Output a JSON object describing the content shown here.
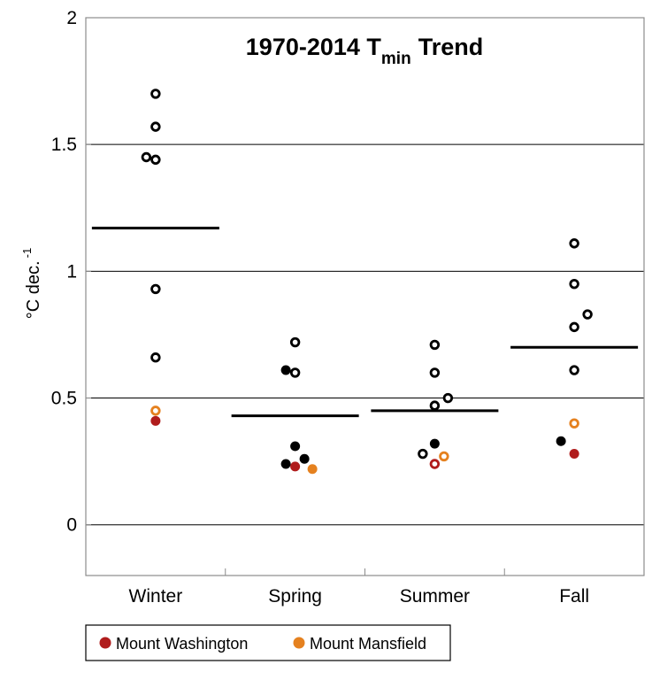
{
  "chart_data": {
    "type": "scatter",
    "title": "1970-2014 T",
    "title_subscript": "min",
    "title_suffix": "Trend",
    "ylabel": "°C dec.",
    "ylabel_superscript": "-1",
    "ylim": [
      -0.2,
      2.0
    ],
    "yticks": [
      0,
      0.5,
      1,
      1.5,
      2
    ],
    "ytick_labels": [
      "0",
      "0.5",
      "1",
      "1.5",
      "2"
    ],
    "grid": true,
    "categories": [
      "Winter",
      "Spring",
      "Summer",
      "Fall"
    ],
    "means": [
      1.17,
      0.43,
      0.45,
      0.7
    ],
    "colors": {
      "station": "#000000",
      "washington": "#b01c1c",
      "mansfield": "#e5811f"
    },
    "points": [
      {
        "category": 0,
        "offset": -0.35,
        "value": 1.45,
        "series": "station",
        "filled": false
      },
      {
        "category": 0,
        "offset": 0,
        "value": 1.7,
        "series": "station",
        "filled": false
      },
      {
        "category": 0,
        "offset": 0,
        "value": 1.57,
        "series": "station",
        "filled": false
      },
      {
        "category": 0,
        "offset": 0,
        "value": 1.44,
        "series": "station",
        "filled": false
      },
      {
        "category": 0,
        "offset": 0,
        "value": 0.93,
        "series": "station",
        "filled": false
      },
      {
        "category": 0,
        "offset": 0,
        "value": 0.66,
        "series": "station",
        "filled": false
      },
      {
        "category": 0,
        "offset": 0,
        "value": 0.45,
        "series": "Mount Mansfield",
        "filled": false
      },
      {
        "category": 0,
        "offset": 0,
        "value": 0.41,
        "series": "Mount Washington",
        "filled": true
      },
      {
        "category": 1,
        "offset": 0,
        "value": 0.72,
        "series": "station",
        "filled": false
      },
      {
        "category": 1,
        "offset": -0.35,
        "value": 0.61,
        "series": "station",
        "filled": true
      },
      {
        "category": 1,
        "offset": 0,
        "value": 0.6,
        "series": "station",
        "filled": false
      },
      {
        "category": 1,
        "offset": 0,
        "value": 0.31,
        "series": "station",
        "filled": true
      },
      {
        "category": 1,
        "offset": 0.35,
        "value": 0.26,
        "series": "station",
        "filled": true
      },
      {
        "category": 1,
        "offset": -0.35,
        "value": 0.24,
        "series": "station",
        "filled": true
      },
      {
        "category": 1,
        "offset": 0,
        "value": 0.23,
        "series": "Mount Washington",
        "filled": true
      },
      {
        "category": 1,
        "offset": 0.65,
        "value": 0.22,
        "series": "Mount Mansfield",
        "filled": true
      },
      {
        "category": 2,
        "offset": 0,
        "value": 0.71,
        "series": "station",
        "filled": false
      },
      {
        "category": 2,
        "offset": 0,
        "value": 0.6,
        "series": "station",
        "filled": false
      },
      {
        "category": 2,
        "offset": 0.5,
        "value": 0.5,
        "series": "station",
        "filled": false
      },
      {
        "category": 2,
        "offset": 0,
        "value": 0.47,
        "series": "station",
        "filled": false
      },
      {
        "category": 2,
        "offset": 0,
        "value": 0.32,
        "series": "station",
        "filled": true
      },
      {
        "category": 2,
        "offset": -0.45,
        "value": 0.28,
        "series": "station",
        "filled": false
      },
      {
        "category": 2,
        "offset": 0.35,
        "value": 0.27,
        "series": "Mount Mansfield",
        "filled": false
      },
      {
        "category": 2,
        "offset": 0,
        "value": 0.24,
        "series": "Mount Washington",
        "filled": false
      },
      {
        "category": 3,
        "offset": 0,
        "value": 1.11,
        "series": "station",
        "filled": false
      },
      {
        "category": 3,
        "offset": 0,
        "value": 0.95,
        "series": "station",
        "filled": false
      },
      {
        "category": 3,
        "offset": 0.5,
        "value": 0.83,
        "series": "station",
        "filled": false
      },
      {
        "category": 3,
        "offset": 0,
        "value": 0.78,
        "series": "station",
        "filled": false
      },
      {
        "category": 3,
        "offset": 0,
        "value": 0.61,
        "series": "station",
        "filled": false
      },
      {
        "category": 3,
        "offset": 0,
        "value": 0.4,
        "series": "Mount Mansfield",
        "filled": false
      },
      {
        "category": 3,
        "offset": -0.5,
        "value": 0.33,
        "series": "station",
        "filled": true
      },
      {
        "category": 3,
        "offset": 0,
        "value": 0.28,
        "series": "Mount Washington",
        "filled": true
      }
    ],
    "legend": {
      "position": "bottom-left",
      "entries": [
        {
          "label": "Mount Washington",
          "color": "#b01c1c"
        },
        {
          "label": "Mount Mansfield",
          "color": "#e5811f"
        }
      ]
    }
  }
}
